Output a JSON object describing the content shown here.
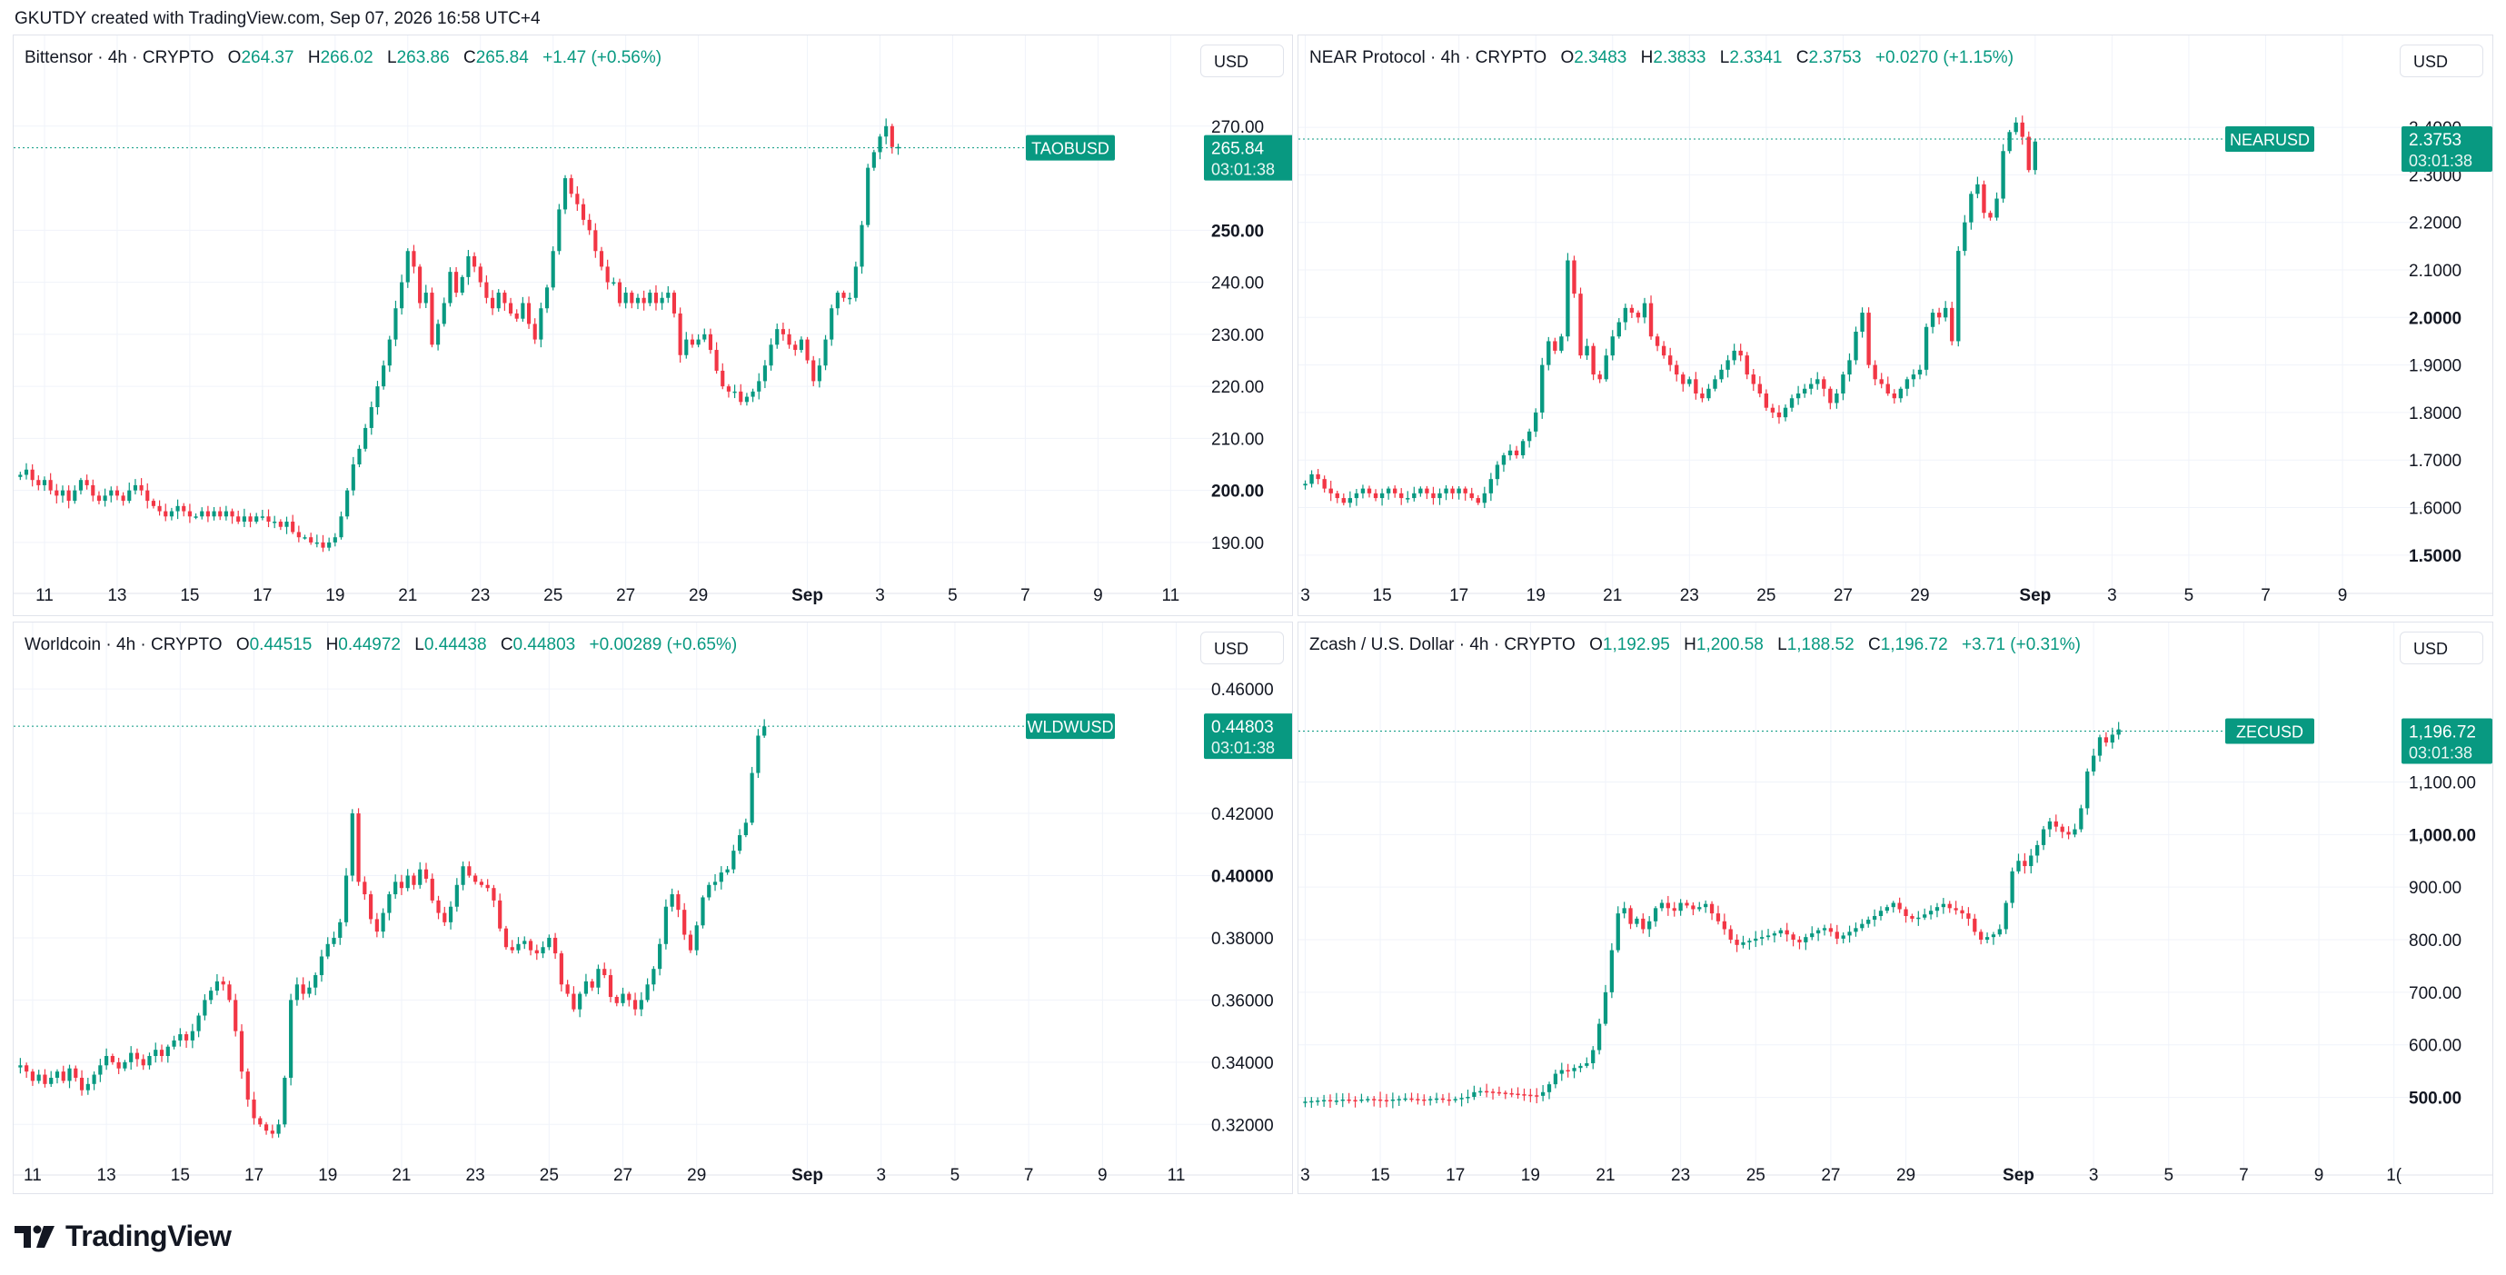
{
  "caption": "GKUTDY created with TradingView.com, Sep 07, 2026 16:58 UTC+4",
  "brand": "TradingView",
  "colors": {
    "up": "#089981",
    "down": "#F23645",
    "grid": "#F0F3FA",
    "border": "#E0E3EB"
  },
  "panels": [
    {
      "name": "Bittensor · 4h · CRYPTO",
      "o": "264.37",
      "h": "266.02",
      "l": "263.86",
      "c": "265.84",
      "change": "+1.47 (+0.56%)",
      "currency": "USD",
      "symbol": "TAOBUSD",
      "last": "265.84",
      "countdown": "03:01:38"
    },
    {
      "name": "NEAR Protocol · 4h · CRYPTO",
      "o": "2.3483",
      "h": "2.3833",
      "l": "2.3341",
      "c": "2.3753",
      "change": "+0.0270 (+1.15%)",
      "currency": "USD",
      "symbol": "NEARUSD",
      "last": "2.3753",
      "countdown": "03:01:38"
    },
    {
      "name": "Worldcoin · 4h · CRYPTO",
      "o": "0.44515",
      "h": "0.44972",
      "l": "0.44438",
      "c": "0.44803",
      "change": "+0.00289 (+0.65%)",
      "currency": "USD",
      "symbol": "WLDWUSD",
      "last": "0.44803",
      "countdown": "03:01:38"
    },
    {
      "name": "Zcash / U.S. Dollar · 4h · CRYPTO",
      "o": "1,192.95",
      "h": "1,200.58",
      "l": "1,188.52",
      "c": "1,196.72",
      "change": "+3.71 (+0.31%)",
      "currency": "USD",
      "symbol": "ZECUSD",
      "last": "1,196.72",
      "countdown": "03:01:38"
    }
  ],
  "chart_data": [
    {
      "type": "candlestick",
      "title": "Bittensor · 4h · CRYPTO",
      "ylim": [
        183,
        278
      ],
      "yticks": [
        {
          "v": 270,
          "t": "270.00"
        },
        {
          "v": 250,
          "t": "250.00",
          "bold": true
        },
        {
          "v": 240,
          "t": "240.00"
        },
        {
          "v": 230,
          "t": "230.00"
        },
        {
          "v": 220,
          "t": "220.00"
        },
        {
          "v": 210,
          "t": "210.00"
        },
        {
          "v": 200,
          "t": "200.00",
          "bold": true
        },
        {
          "v": 190,
          "t": "190.00"
        }
      ],
      "xticks": [
        {
          "i": 4,
          "t": "11"
        },
        {
          "i": 16,
          "t": "13"
        },
        {
          "i": 28,
          "t": "15"
        },
        {
          "i": 40,
          "t": "17"
        },
        {
          "i": 52,
          "t": "19"
        },
        {
          "i": 64,
          "t": "21"
        },
        {
          "i": 76,
          "t": "23"
        },
        {
          "i": 88,
          "t": "25"
        },
        {
          "i": 100,
          "t": "27"
        },
        {
          "i": 112,
          "t": "29"
        },
        {
          "i": 130,
          "t": "Sep",
          "bold": true
        },
        {
          "i": 142,
          "t": "3"
        },
        {
          "i": 154,
          "t": "5"
        },
        {
          "i": 166,
          "t": "7"
        },
        {
          "i": 178,
          "t": "9"
        },
        {
          "i": 190,
          "t": "11"
        }
      ],
      "total_slots": 196,
      "last": 265.84,
      "closes": [
        203,
        204,
        202,
        201,
        202,
        200,
        199,
        200,
        198,
        200,
        202,
        201,
        199,
        198,
        199,
        200,
        199,
        198,
        200,
        201,
        200,
        198,
        197,
        196,
        195,
        196,
        197,
        196,
        195,
        195,
        196,
        195,
        196,
        195,
        196,
        195,
        194,
        195,
        194,
        195,
        195,
        194,
        194,
        193,
        194,
        192,
        191,
        191,
        190,
        190,
        189,
        190,
        191,
        195,
        200,
        205,
        208,
        212,
        216,
        220,
        224,
        229,
        235,
        240,
        246,
        243,
        236,
        238,
        228,
        232,
        236,
        242,
        238,
        241,
        245,
        243,
        240,
        237,
        235,
        238,
        236,
        234,
        233,
        236,
        232,
        229,
        235,
        239,
        246,
        254,
        260,
        257,
        255,
        252,
        250,
        246,
        243,
        240,
        240,
        236,
        238,
        236,
        237,
        236,
        238,
        236,
        237,
        238,
        234,
        226,
        229,
        228,
        229,
        230,
        227,
        223,
        220,
        219,
        219,
        217,
        218,
        219,
        221,
        224,
        228,
        231,
        230,
        228,
        227,
        229,
        225,
        221,
        224,
        229,
        235,
        238,
        237,
        237,
        243,
        251,
        262,
        265,
        268,
        270,
        266,
        266
      ]
    },
    {
      "type": "candlestick",
      "title": "NEAR Protocol · 4h · CRYPTO",
      "ylim": [
        1.45,
        2.49
      ],
      "yticks": [
        {
          "v": 2.4,
          "t": "2.4000"
        },
        {
          "v": 2.3,
          "t": "2.3000"
        },
        {
          "v": 2.2,
          "t": "2.2000"
        },
        {
          "v": 2.1,
          "t": "2.1000"
        },
        {
          "v": 2.0,
          "t": "2.0000",
          "bold": true
        },
        {
          "v": 1.9,
          "t": "1.9000"
        },
        {
          "v": 1.8,
          "t": "1.8000"
        },
        {
          "v": 1.7,
          "t": "1.7000"
        },
        {
          "v": 1.6,
          "t": "1.6000"
        },
        {
          "v": 1.5,
          "t": "1.5000",
          "bold": true
        }
      ],
      "xticks": [
        {
          "i": 0,
          "t": "3"
        },
        {
          "i": 12,
          "t": "15"
        },
        {
          "i": 24,
          "t": "17"
        },
        {
          "i": 36,
          "t": "19"
        },
        {
          "i": 48,
          "t": "21"
        },
        {
          "i": 60,
          "t": "23"
        },
        {
          "i": 72,
          "t": "25"
        },
        {
          "i": 84,
          "t": "27"
        },
        {
          "i": 96,
          "t": "29"
        },
        {
          "i": 114,
          "t": "Sep",
          "bold": true
        },
        {
          "i": 126,
          "t": "3"
        },
        {
          "i": 138,
          "t": "5"
        },
        {
          "i": 150,
          "t": "7"
        },
        {
          "i": 162,
          "t": "9"
        }
      ],
      "total_slots": 172,
      "last": 2.3753,
      "closes": [
        1.65,
        1.67,
        1.66,
        1.64,
        1.63,
        1.62,
        1.61,
        1.62,
        1.63,
        1.64,
        1.63,
        1.62,
        1.63,
        1.64,
        1.63,
        1.62,
        1.62,
        1.63,
        1.64,
        1.63,
        1.62,
        1.63,
        1.64,
        1.63,
        1.64,
        1.63,
        1.62,
        1.61,
        1.63,
        1.66,
        1.69,
        1.71,
        1.72,
        1.71,
        1.74,
        1.76,
        1.8,
        1.9,
        1.95,
        1.93,
        1.96,
        2.12,
        2.05,
        1.92,
        1.94,
        1.88,
        1.87,
        1.92,
        1.96,
        1.99,
        2.02,
        2.01,
        2.0,
        2.03,
        1.96,
        1.94,
        1.92,
        1.9,
        1.88,
        1.86,
        1.87,
        1.84,
        1.83,
        1.85,
        1.87,
        1.89,
        1.91,
        1.93,
        1.92,
        1.88,
        1.86,
        1.84,
        1.81,
        1.8,
        1.79,
        1.81,
        1.83,
        1.84,
        1.85,
        1.86,
        1.87,
        1.85,
        1.82,
        1.84,
        1.88,
        1.91,
        1.97,
        2.01,
        1.9,
        1.87,
        1.86,
        1.84,
        1.83,
        1.85,
        1.87,
        1.88,
        1.89,
        1.98,
        2.01,
        2.0,
        2.02,
        1.95,
        2.14,
        2.2,
        2.26,
        2.28,
        2.22,
        2.21,
        2.25,
        2.35,
        2.39,
        2.41,
        2.38,
        2.31,
        2.37
      ]
    },
    {
      "type": "candlestick",
      "title": "Worldcoin · 4h · CRYPTO",
      "ylim": [
        0.3084,
        0.4656
      ],
      "yticks": [
        {
          "v": 0.46,
          "t": "0.46000"
        },
        {
          "v": 0.42,
          "t": "0.42000"
        },
        {
          "v": 0.4,
          "t": "0.40000",
          "bold": true
        },
        {
          "v": 0.38,
          "t": "0.38000"
        },
        {
          "v": 0.36,
          "t": "0.36000"
        },
        {
          "v": 0.34,
          "t": "0.34000"
        },
        {
          "v": 0.32,
          "t": "0.32000"
        }
      ],
      "xticks": [
        {
          "i": 2,
          "t": "11"
        },
        {
          "i": 14,
          "t": "13"
        },
        {
          "i": 26,
          "t": "15"
        },
        {
          "i": 38,
          "t": "17"
        },
        {
          "i": 50,
          "t": "19"
        },
        {
          "i": 62,
          "t": "21"
        },
        {
          "i": 74,
          "t": "23"
        },
        {
          "i": 86,
          "t": "25"
        },
        {
          "i": 98,
          "t": "27"
        },
        {
          "i": 110,
          "t": "29"
        },
        {
          "i": 128,
          "t": "Sep",
          "bold": true
        },
        {
          "i": 140,
          "t": "3"
        },
        {
          "i": 152,
          "t": "5"
        },
        {
          "i": 164,
          "t": "7"
        },
        {
          "i": 176,
          "t": "9"
        },
        {
          "i": 188,
          "t": "11"
        }
      ],
      "total_slots": 193,
      "last": 0.44803,
      "closes": [
        0.339,
        0.337,
        0.334,
        0.336,
        0.333,
        0.335,
        0.337,
        0.334,
        0.338,
        0.335,
        0.331,
        0.333,
        0.336,
        0.339,
        0.342,
        0.34,
        0.338,
        0.34,
        0.343,
        0.341,
        0.339,
        0.342,
        0.344,
        0.342,
        0.345,
        0.347,
        0.349,
        0.347,
        0.35,
        0.355,
        0.36,
        0.363,
        0.366,
        0.365,
        0.36,
        0.35,
        0.337,
        0.328,
        0.322,
        0.32,
        0.318,
        0.317,
        0.32,
        0.335,
        0.36,
        0.365,
        0.362,
        0.364,
        0.368,
        0.374,
        0.378,
        0.38,
        0.385,
        0.4,
        0.42,
        0.398,
        0.394,
        0.386,
        0.382,
        0.388,
        0.394,
        0.398,
        0.396,
        0.4,
        0.397,
        0.402,
        0.399,
        0.392,
        0.388,
        0.385,
        0.39,
        0.397,
        0.403,
        0.4,
        0.398,
        0.397,
        0.396,
        0.392,
        0.383,
        0.377,
        0.376,
        0.378,
        0.379,
        0.376,
        0.375,
        0.377,
        0.38,
        0.375,
        0.365,
        0.362,
        0.357,
        0.362,
        0.366,
        0.364,
        0.37,
        0.368,
        0.361,
        0.359,
        0.362,
        0.36,
        0.357,
        0.36,
        0.365,
        0.37,
        0.378,
        0.39,
        0.394,
        0.389,
        0.381,
        0.376,
        0.384,
        0.393,
        0.397,
        0.398,
        0.401,
        0.402,
        0.408,
        0.413,
        0.417,
        0.433,
        0.445,
        0.448
      ]
    },
    {
      "type": "candlestick",
      "title": "Zcash / U.S. Dollar · 4h · CRYPTO",
      "ylim": [
        380,
        1310
      ],
      "yticks": [
        {
          "v": 1100,
          "t": "1,100.00"
        },
        {
          "v": 1000,
          "t": "1,000.00",
          "bold": true
        },
        {
          "v": 900,
          "t": "900.00"
        },
        {
          "v": 800,
          "t": "800.00"
        },
        {
          "v": 700,
          "t": "700.00"
        },
        {
          "v": 600,
          "t": "600.00"
        },
        {
          "v": 500,
          "t": "500.00",
          "bold": true
        }
      ],
      "xticks": [
        {
          "i": 0,
          "t": "3"
        },
        {
          "i": 12,
          "t": "15"
        },
        {
          "i": 24,
          "t": "17"
        },
        {
          "i": 36,
          "t": "19"
        },
        {
          "i": 48,
          "t": "21"
        },
        {
          "i": 60,
          "t": "23"
        },
        {
          "i": 72,
          "t": "25"
        },
        {
          "i": 84,
          "t": "27"
        },
        {
          "i": 96,
          "t": "29"
        },
        {
          "i": 114,
          "t": "Sep",
          "bold": true
        },
        {
          "i": 126,
          "t": "3"
        },
        {
          "i": 138,
          "t": "5"
        },
        {
          "i": 150,
          "t": "7"
        },
        {
          "i": 162,
          "t": "9"
        },
        {
          "i": 174,
          "t": "1("
        }
      ],
      "total_slots": 176,
      "last": 1196.72,
      "closes": [
        492,
        493,
        494,
        495,
        493,
        494,
        496,
        495,
        494,
        496,
        497,
        496,
        495,
        494,
        496,
        497,
        498,
        497,
        496,
        495,
        497,
        498,
        496,
        495,
        497,
        499,
        501,
        510,
        512,
        511,
        510,
        509,
        508,
        507,
        506,
        505,
        504,
        503,
        510,
        525,
        545,
        552,
        550,
        556,
        560,
        565,
        590,
        640,
        700,
        780,
        850,
        860,
        830,
        840,
        820,
        835,
        860,
        870,
        860,
        855,
        870,
        865,
        858,
        862,
        868,
        850,
        835,
        820,
        800,
        790,
        795,
        798,
        802,
        805,
        808,
        812,
        818,
        810,
        800,
        795,
        805,
        812,
        818,
        822,
        815,
        802,
        808,
        815,
        822,
        830,
        838,
        845,
        855,
        862,
        870,
        858,
        845,
        840,
        842,
        848,
        855,
        862,
        868,
        860,
        856,
        850,
        840,
        815,
        800,
        805,
        810,
        820,
        870,
        930,
        950,
        940,
        960,
        980,
        1010,
        1025,
        1015,
        1005,
        1000,
        1010,
        1050,
        1120,
        1150,
        1185,
        1175,
        1190,
        1200
      ]
    }
  ]
}
